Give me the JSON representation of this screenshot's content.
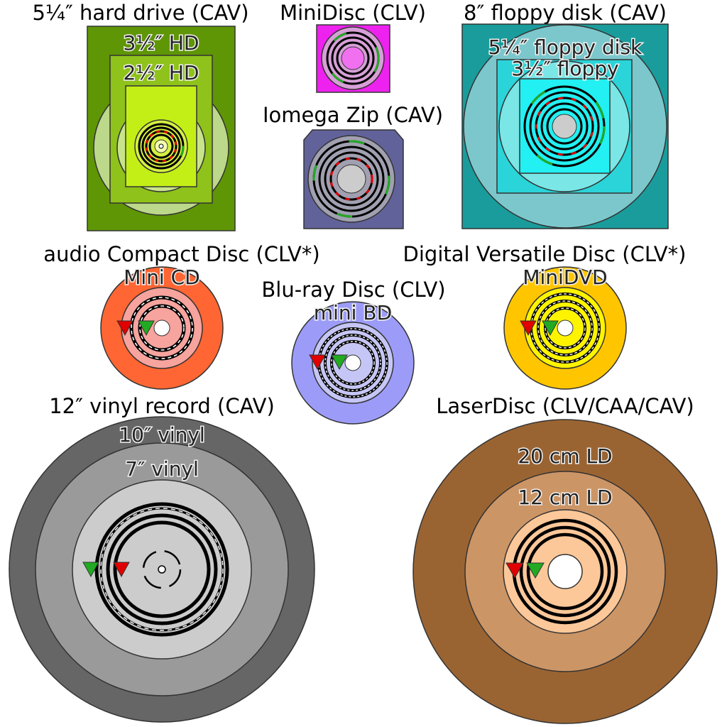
{
  "titles": {
    "hdd": "5¼″ hard drive (CAV)",
    "minidisc": "MiniDisc (CLV)",
    "floppy8": "8″ floppy disk (CAV)",
    "zip": "Iomega Zip (CAV)",
    "cd": "audio Compact Disc (CLV*)",
    "bluray": "Blu-ray Disc (CLV)",
    "dvd": "Digital Versatile Disc (CLV*)",
    "vinyl": "12″ vinyl record (CAV)",
    "laserdisc": "LaserDisc (CLV/CAA/CAV)"
  },
  "labels": {
    "hdd35": "3½″ HD",
    "hdd25": "2½″ HD",
    "floppy525": "5¼″ floppy disk",
    "floppy35": "3½″ floppy",
    "minicd": "Mini CD",
    "minibd": "mini BD",
    "minidvd": "MiniDVD",
    "vinyl10": "10″ vinyl",
    "vinyl7": "7″ vinyl",
    "ld20": "20 cm LD",
    "ld12": "12 cm LD"
  },
  "colors": {
    "hdd_outer": "#5f9605",
    "hdd_mid": "#8fc21a",
    "hdd_inner": "#c4ef16",
    "hdd_platter": "#bcd88a",
    "minidisc": "#ee22ee",
    "floppy_outer": "#1a9c9c",
    "floppy_disk": "#7cc7cc",
    "floppy_mid": "#2ad4d8",
    "floppy_inner": "#22f0f2",
    "zip": "#62629a",
    "cd_outer": "#ff6633",
    "cd_inner": "#f7a39e",
    "bd_outer": "#9c9cf8",
    "bd_inner": "#c6c6f6",
    "dvd_outer": "#ffc600",
    "dvd_inner": "#fff400",
    "vinyl_outer": "#666666",
    "vinyl_mid": "#9a9a9a",
    "vinyl_inner": "#cccccc",
    "ld_outer": "#9a6432",
    "ld_mid": "#cc9566",
    "ld_inner": "#fdc899",
    "marker_start": "#e00000",
    "marker_end": "#22aa22"
  }
}
